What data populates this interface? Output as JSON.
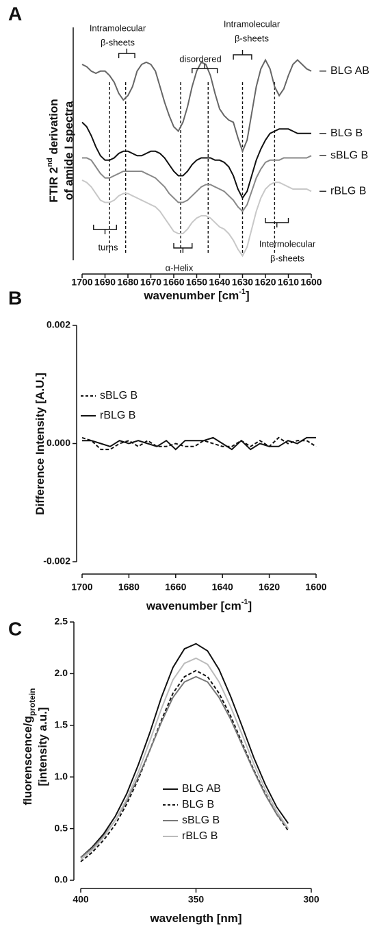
{
  "chart_data": [
    {
      "type": "line",
      "panel": "A",
      "ylabel": {
        "line1": "FTIR 2",
        "sup": "nd",
        "line1_end": " derivation",
        "line2": "of amide I spectra"
      },
      "xlabel": {
        "text": "wavenumber [cm",
        "sup": "-1",
        "end": "]"
      },
      "xlim": [
        1700,
        1600
      ],
      "xticks": [
        1700,
        1690,
        1680,
        1670,
        1660,
        1650,
        1640,
        1630,
        1620,
        1610,
        1600
      ],
      "ylim": [
        0,
        100
      ],
      "legend": "curve-end",
      "x": [
        1700,
        1698,
        1696,
        1694,
        1692,
        1690,
        1688,
        1686,
        1684,
        1682,
        1680,
        1678,
        1676,
        1674,
        1672,
        1670,
        1668,
        1666,
        1664,
        1662,
        1660,
        1658,
        1656,
        1654,
        1652,
        1650,
        1648,
        1646,
        1644,
        1642,
        1640,
        1638,
        1636,
        1634,
        1632,
        1630,
        1628,
        1626,
        1624,
        1622,
        1620,
        1618,
        1616,
        1614,
        1612,
        1610,
        1608,
        1606,
        1604,
        1602,
        1600
      ],
      "series": [
        {
          "name": "BLG AB",
          "color": "#666666",
          "values": [
            88,
            87,
            85,
            84,
            85,
            85,
            83,
            80,
            75,
            72,
            74,
            78,
            85,
            88,
            89,
            88,
            85,
            78,
            71,
            65,
            60,
            58,
            62,
            69,
            78,
            85,
            89,
            88,
            83,
            75,
            68,
            65,
            63,
            62,
            55,
            49,
            54,
            66,
            78,
            86,
            90,
            86,
            78,
            74,
            77,
            83,
            88,
            90,
            88,
            86,
            85
          ]
        },
        {
          "name": "BLG B",
          "color": "#111111",
          "values": [
            62,
            60,
            56,
            51,
            47,
            45,
            45,
            46,
            48,
            49,
            49,
            48,
            47,
            47,
            48,
            49,
            49,
            48,
            46,
            43,
            40,
            38,
            38,
            40,
            43,
            45,
            46,
            46,
            46,
            45,
            45,
            44,
            42,
            38,
            32,
            28,
            31,
            38,
            45,
            50,
            54,
            57,
            58,
            59,
            59,
            59,
            58,
            57,
            57,
            57,
            57
          ]
        },
        {
          "name": "sBLG B",
          "color": "#888888",
          "values": [
            46,
            46,
            45,
            42,
            39,
            37,
            37,
            38,
            39,
            40,
            40,
            40,
            40,
            40,
            39,
            38,
            37,
            35,
            33,
            30,
            28,
            26,
            26,
            27,
            29,
            31,
            33,
            34,
            34,
            33,
            32,
            31,
            29,
            27,
            24,
            22,
            25,
            31,
            37,
            41,
            44,
            45,
            45,
            45,
            46,
            46,
            46,
            46,
            46,
            46,
            47
          ]
        },
        {
          "name": "rBLG B",
          "color": "#c8c8c8",
          "values": [
            36,
            35,
            33,
            30,
            27,
            26,
            26,
            27,
            29,
            30,
            30,
            29,
            28,
            27,
            26,
            25,
            24,
            22,
            19,
            16,
            13,
            12,
            12,
            14,
            17,
            19,
            20,
            20,
            19,
            17,
            15,
            14,
            12,
            9,
            5,
            2,
            6,
            14,
            22,
            28,
            32,
            34,
            35,
            35,
            34,
            33,
            32,
            32,
            32,
            32,
            31
          ]
        }
      ],
      "dashed_lines": [
        1688,
        1681,
        1657,
        1645,
        1630,
        1616
      ],
      "annotations": [
        {
          "lines": [
            "Intramolecular",
            "β-sheets"
          ]
        },
        {
          "lines": [
            "disordered"
          ]
        },
        {
          "lines": [
            "Intramolecular",
            "β-sheets"
          ]
        },
        {
          "lines": [
            "turns"
          ]
        },
        {
          "lines": [
            "α-Helix"
          ]
        },
        {
          "lines": [
            "Intermolecular",
            "β-sheets"
          ]
        }
      ]
    },
    {
      "type": "line",
      "panel": "B",
      "ylabel": {
        "line1": "Difference Intensity [A.U.]"
      },
      "xlabel": {
        "text": "wavenumber [cm",
        "sup": "-1",
        "end": "]"
      },
      "xlim": [
        1700,
        1600
      ],
      "xticks": [
        1700,
        1680,
        1660,
        1640,
        1620,
        1600
      ],
      "ylim": [
        -0.002,
        0.002
      ],
      "yticks": [
        {
          "value": -0.002,
          "label": "-0.002"
        },
        {
          "value": 0,
          "label": "0.000"
        },
        {
          "value": 0.002,
          "label": "0.002"
        }
      ],
      "legend": "upper-left",
      "x": [
        1700,
        1696,
        1692,
        1688,
        1684,
        1680,
        1676,
        1672,
        1668,
        1664,
        1660,
        1656,
        1652,
        1648,
        1644,
        1640,
        1636,
        1632,
        1628,
        1624,
        1620,
        1616,
        1612,
        1608,
        1604,
        1600
      ],
      "series": [
        {
          "name": "sBLG B",
          "color": "#111111",
          "dashed": true,
          "values": [
            0.0001,
            5e-05,
            -0.0001,
            -0.0001,
            0,
            5e-05,
            -5e-05,
            5e-05,
            -5e-05,
            -5e-05,
            0,
            -5e-05,
            -5e-05,
            5e-05,
            0,
            -5e-05,
            -5e-05,
            5e-05,
            -5e-05,
            5e-05,
            -5e-05,
            0.0001,
            0,
            5e-05,
            5e-05,
            -5e-05
          ]
        },
        {
          "name": "rBLG B",
          "color": "#111111",
          "values": [
            5e-05,
            5e-05,
            0,
            -5e-05,
            5e-05,
            0,
            5e-05,
            0,
            -5e-05,
            5e-05,
            -0.0001,
            5e-05,
            5e-05,
            5e-05,
            0.0001,
            0,
            -0.0001,
            5e-05,
            -0.0001,
            0,
            -5e-05,
            -5e-05,
            5e-05,
            0,
            0.0001,
            0.0001
          ]
        }
      ]
    },
    {
      "type": "line",
      "panel": "C",
      "ylabel": {
        "line1": "fluorenscence/g",
        "sub": "protein",
        "line2": "[intensity a.u.]"
      },
      "xlabel": {
        "text": "wavelength [nm]"
      },
      "xlim": [
        400,
        300
      ],
      "xticks": [
        400,
        350,
        300
      ],
      "ylim": [
        0,
        2.5
      ],
      "yticks": [
        {
          "value": 0,
          "label": "0.0"
        },
        {
          "value": 0.5,
          "label": "0.5"
        },
        {
          "value": 1,
          "label": "1.0"
        },
        {
          "value": 1.5,
          "label": "1.5"
        },
        {
          "value": 2,
          "label": "2.0"
        },
        {
          "value": 2.5,
          "label": "2.5"
        }
      ],
      "legend": "lower-center",
      "x": [
        400,
        395,
        390,
        385,
        380,
        375,
        370,
        365,
        360,
        355,
        350,
        345,
        340,
        335,
        330,
        325,
        320,
        315,
        310
      ],
      "series": [
        {
          "name": "BLG AB",
          "color": "#111111",
          "values": [
            0.22,
            0.32,
            0.45,
            0.62,
            0.84,
            1.12,
            1.43,
            1.77,
            2.06,
            2.24,
            2.29,
            2.22,
            2.04,
            1.78,
            1.49,
            1.19,
            0.93,
            0.71,
            0.55
          ]
        },
        {
          "name": "BLG B",
          "color": "#111111",
          "dashed": true,
          "values": [
            0.18,
            0.27,
            0.39,
            0.54,
            0.74,
            0.98,
            1.26,
            1.55,
            1.81,
            1.97,
            2.03,
            1.97,
            1.81,
            1.59,
            1.33,
            1.07,
            0.84,
            0.64,
            0.48
          ]
        },
        {
          "name": "sBLG B",
          "color": "#777777",
          "values": [
            0.22,
            0.31,
            0.43,
            0.58,
            0.77,
            1.0,
            1.26,
            1.53,
            1.77,
            1.92,
            1.97,
            1.92,
            1.77,
            1.56,
            1.31,
            1.06,
            0.83,
            0.64,
            0.5
          ]
        },
        {
          "name": "rBLG B",
          "color": "#bbbbbb",
          "values": [
            0.2,
            0.29,
            0.42,
            0.58,
            0.79,
            1.05,
            1.35,
            1.66,
            1.94,
            2.1,
            2.15,
            2.09,
            1.92,
            1.68,
            1.41,
            1.13,
            0.88,
            0.67,
            0.5
          ]
        }
      ]
    }
  ]
}
